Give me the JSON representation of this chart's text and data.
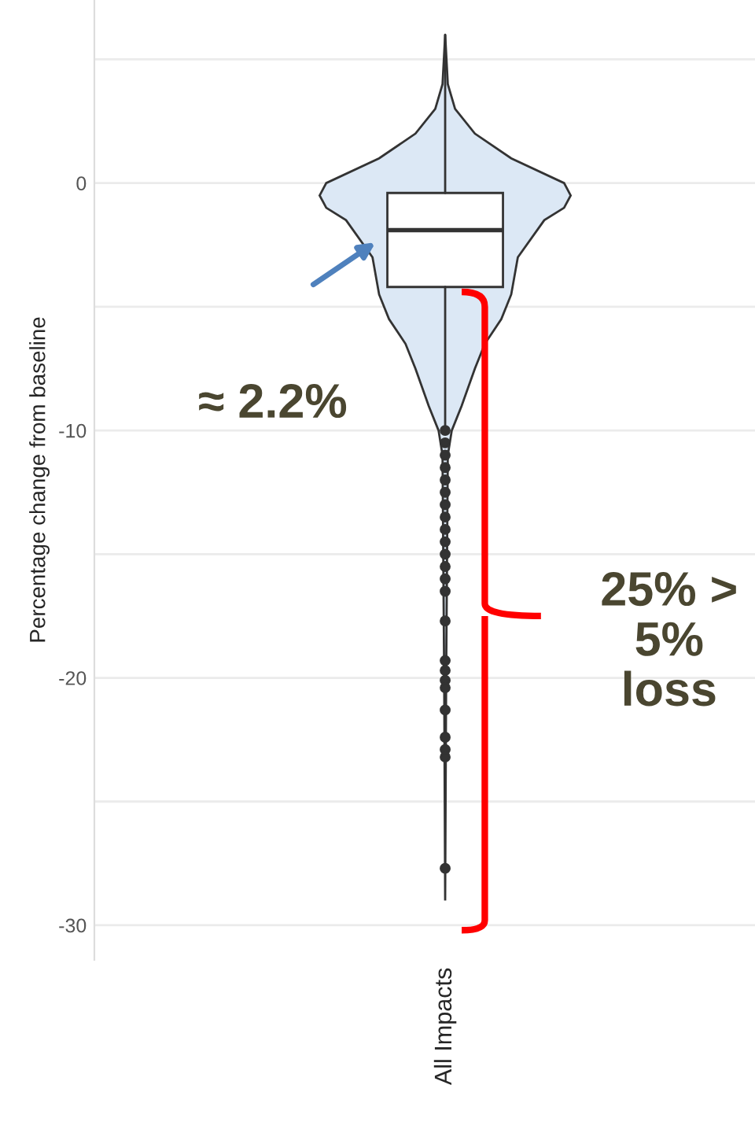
{
  "chart_data": {
    "type": "box",
    "ylabel": "Percentage change from baseline",
    "categories": [
      "All Impacts"
    ],
    "boxes": [
      {
        "low": -9.8,
        "q1": -4.2,
        "median": -1.9,
        "q3": -0.4,
        "high": 6.0,
        "outliers": [
          -10.0,
          -10.5,
          -11.0,
          -11.5,
          -12.0,
          -12.5,
          -13.0,
          -13.5,
          -14.0,
          -14.5,
          -15.0,
          -15.5,
          -16.0,
          -16.5,
          -17.7,
          -19.3,
          -19.7,
          -20.1,
          -20.4,
          -21.3,
          -22.4,
          -22.9,
          -23.2,
          -27.7
        ]
      }
    ],
    "ylim": [
      -31.4,
      7.4
    ],
    "yticks": [
      -30,
      -20,
      -10,
      0
    ],
    "grid": "y",
    "annotations": [
      "≈ 2.2%",
      "25% >\n5%\nloss"
    ]
  }
}
